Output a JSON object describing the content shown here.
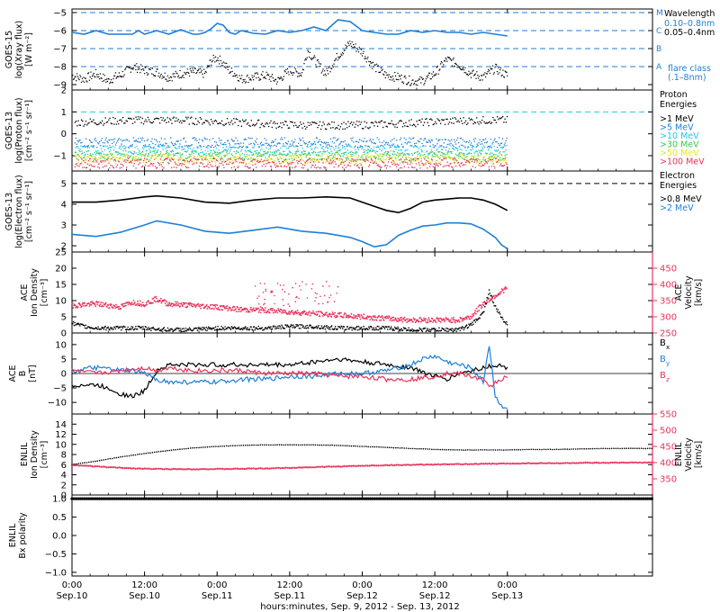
{
  "colors": {
    "black": "#000000",
    "blue": "#1e7fd8",
    "cyan": "#1ec8e6",
    "green": "#39c94e",
    "yellow": "#e3e61e",
    "orange": "#f08c28",
    "red": "#e8335b",
    "pink": "#e8335b"
  },
  "x_axis": {
    "label": "hours:minutes, Sep.  9, 2012 - Sep. 13, 2012",
    "range_hours": [
      0,
      96
    ],
    "ticks": [
      {
        "h": 0,
        "time": "0:00",
        "date": "Sep.10"
      },
      {
        "h": 12,
        "time": "12:00",
        "date": "Sep.10"
      },
      {
        "h": 24,
        "time": "0:00",
        "date": "Sep.11"
      },
      {
        "h": 36,
        "time": "12:00",
        "date": "Sep.11"
      },
      {
        "h": 48,
        "time": "0:00",
        "date": "Sep.12"
      },
      {
        "h": 60,
        "time": "12:00",
        "date": "Sep.12"
      },
      {
        "h": 72,
        "time": "0:00",
        "date": "Sep.13"
      }
    ]
  },
  "chart_data": [
    {
      "type": "line",
      "panel": "goes15-xray",
      "ylabel_lines": [
        "GOES-15",
        "log(Xray flux)",
        "[W m⁻²]"
      ],
      "ylim": [
        -9.3,
        -4.8
      ],
      "yticks": [
        -5,
        -6,
        -7,
        -8,
        -9
      ],
      "threshold_lines": [
        {
          "y": -5,
          "label": "M"
        },
        {
          "y": -6,
          "label": "C"
        },
        {
          "y": -7,
          "label": "B"
        },
        {
          "y": -8,
          "label": "A"
        }
      ],
      "legend_title": "Wavelength",
      "series": [
        {
          "name": "0.10-0.8nm",
          "color_key": "blue",
          "x": [
            0,
            2,
            4,
            5,
            6,
            7,
            8,
            9,
            10,
            11,
            12,
            14,
            15,
            16,
            18,
            20,
            21,
            22,
            23,
            24,
            25,
            26,
            27,
            28,
            30,
            32,
            34,
            36,
            38,
            40,
            42,
            44,
            46,
            48,
            50,
            52,
            54,
            56,
            58,
            60,
            62,
            64,
            66,
            68,
            70,
            72
          ],
          "y": [
            -6.1,
            -6.2,
            -6.0,
            -6.1,
            -6.2,
            -6.2,
            -6.2,
            -6.2,
            -6.2,
            -6.0,
            -6.2,
            -6.0,
            -6.1,
            -6.2,
            -5.95,
            -6.2,
            -6.2,
            -6.1,
            -5.9,
            -5.6,
            -5.7,
            -6.1,
            -6.2,
            -6.0,
            -6.15,
            -6.2,
            -6.0,
            -6.1,
            -6.0,
            -5.8,
            -6.0,
            -5.4,
            -5.5,
            -6.0,
            -6.1,
            -6.2,
            -6.2,
            -6.0,
            -6.1,
            -6.0,
            -6.1,
            -6.1,
            -6.2,
            -6.1,
            -6.2,
            -6.3
          ]
        },
        {
          "name": "0.05-0.4nm",
          "color_key": "black",
          "x": [
            0,
            2,
            4,
            5,
            6,
            7,
            8,
            10,
            12,
            14,
            16,
            18,
            20,
            22,
            23,
            24,
            25,
            26,
            27,
            28,
            30,
            32,
            34,
            36,
            38,
            39,
            40,
            42,
            44,
            46,
            48,
            50,
            52,
            54,
            56,
            58,
            60,
            62,
            64,
            66,
            68,
            70,
            72
          ],
          "y": [
            -8.5,
            -8.7,
            -8.4,
            -8.6,
            -8.8,
            -8.6,
            -8.5,
            -8.0,
            -8.2,
            -8.3,
            -8.6,
            -8.4,
            -8.3,
            -8.4,
            -7.7,
            -7.5,
            -7.8,
            -8.2,
            -8.4,
            -8.7,
            -8.6,
            -8.5,
            -8.8,
            -8.2,
            -8.4,
            -7.1,
            -7.6,
            -8.4,
            -7.4,
            -6.7,
            -7.2,
            -8.0,
            -8.5,
            -8.6,
            -8.8,
            -8.8,
            -8.4,
            -7.6,
            -7.9,
            -8.4,
            -8.6,
            -8.1,
            -8.5
          ]
        }
      ],
      "footnote": {
        "title": "flare class",
        "subtitle": "(.1–8nm)"
      }
    },
    {
      "type": "scatter",
      "panel": "goes13-proton",
      "ylabel_lines": [
        "GOES-13",
        "log(Proton flux)",
        "[cm⁻² s⁻¹ sr⁻¹]"
      ],
      "ylim": [
        -1.7,
        2.0
      ],
      "yticks": [
        2,
        1,
        0,
        -1
      ],
      "threshold_line": 1,
      "legend_title": "Proton Energies",
      "series": [
        {
          "name": ">1 MeV",
          "color_key": "black",
          "mean_y": 0.5
        },
        {
          "name": ">5 MeV",
          "color_key": "blue",
          "mean_y": -0.4
        },
        {
          "name": ">10 MeV",
          "color_key": "cyan",
          "mean_y": -0.75
        },
        {
          "name": ">30 MeV",
          "color_key": "green",
          "mean_y": -1.0
        },
        {
          "name": ">50 MeV",
          "color_key": "yellow",
          "mean_y": -1.15
        },
        {
          "name": ">100 MeV",
          "color_key": "red",
          "mean_y": -1.35
        }
      ]
    },
    {
      "type": "line",
      "panel": "goes13-electron",
      "ylabel_lines": [
        "GOES-13",
        "log(Electron flux)",
        "[cm⁻² s⁻¹ sr⁻¹]"
      ],
      "ylim": [
        1.7,
        5.6
      ],
      "yticks": [
        5,
        4,
        3,
        2
      ],
      "threshold_line": 5,
      "legend_title": "Electron Energies",
      "series": [
        {
          "name": ">0.8 MeV",
          "color_key": "black",
          "x": [
            0,
            4,
            8,
            12,
            14,
            18,
            22,
            26,
            30,
            34,
            38,
            42,
            46,
            48,
            50,
            52,
            54,
            56,
            58,
            60,
            62,
            64,
            66,
            68,
            70,
            72
          ],
          "y": [
            4.1,
            4.1,
            4.2,
            4.35,
            4.4,
            4.3,
            4.1,
            4.05,
            4.2,
            4.3,
            4.3,
            4.35,
            4.3,
            4.1,
            3.9,
            3.7,
            3.6,
            3.8,
            4.1,
            4.2,
            4.25,
            4.3,
            4.3,
            4.2,
            4.0,
            3.7
          ]
        },
        {
          "name": ">2 MeV",
          "color_key": "blue",
          "x": [
            0,
            4,
            8,
            12,
            14,
            18,
            22,
            26,
            30,
            34,
            38,
            42,
            46,
            48,
            50,
            52,
            54,
            56,
            58,
            60,
            62,
            64,
            66,
            68,
            70,
            71,
            72
          ],
          "y": [
            2.55,
            2.45,
            2.65,
            3.0,
            3.2,
            3.0,
            2.7,
            2.6,
            2.75,
            2.9,
            2.7,
            2.6,
            2.4,
            2.2,
            1.95,
            2.05,
            2.5,
            2.75,
            2.95,
            3.0,
            3.1,
            3.1,
            3.05,
            2.8,
            2.4,
            2.05,
            1.85
          ]
        }
      ]
    },
    {
      "type": "scatter",
      "panel": "ace-plasma",
      "ylabel_lines": [
        "ACE",
        "Ion Density",
        "[cm⁻³]"
      ],
      "ylim": [
        0,
        25
      ],
      "yticks": [
        25,
        20,
        15,
        10,
        5,
        0
      ],
      "ylabel_right_lines": [
        "ACE",
        "Velocity",
        "[km/s]"
      ],
      "ylim_right": [
        250,
        500
      ],
      "yticks_right": [
        450,
        400,
        350,
        300,
        250
      ],
      "series": [
        {
          "name": "Ion Density",
          "color_key": "black",
          "x": [
            0,
            2,
            4,
            8,
            12,
            16,
            20,
            24,
            28,
            32,
            36,
            40,
            44,
            48,
            52,
            56,
            60,
            64,
            66,
            68,
            69,
            70,
            71,
            72
          ],
          "y": [
            3,
            2,
            1.5,
            1.5,
            1.5,
            1,
            1,
            1.5,
            1.5,
            1.5,
            2,
            2,
            1.5,
            1.5,
            1.5,
            1,
            1,
            1,
            2.5,
            6,
            13,
            8,
            5,
            2.5
          ]
        },
        {
          "name": "Velocity",
          "color_key": "pink",
          "x": [
            0,
            4,
            8,
            10,
            12,
            14,
            16,
            20,
            24,
            28,
            32,
            36,
            40,
            44,
            48,
            52,
            56,
            60,
            64,
            66,
            68,
            70,
            72
          ],
          "y": [
            335,
            340,
            330,
            345,
            340,
            355,
            340,
            335,
            330,
            322,
            320,
            315,
            310,
            305,
            300,
            295,
            290,
            290,
            290,
            300,
            340,
            365,
            390
          ]
        }
      ]
    },
    {
      "type": "line",
      "panel": "ace-field",
      "ylabel_lines": [
        "ACE",
        "B",
        "[nT]"
      ],
      "ylim": [
        -14,
        14
      ],
      "yticks": [
        10,
        5,
        0,
        -5,
        -10
      ],
      "series": [
        {
          "name": "Bx",
          "color_key": "black",
          "x": [
            0,
            4,
            6,
            8,
            10,
            12,
            14,
            16,
            20,
            24,
            28,
            32,
            36,
            40,
            44,
            48,
            52,
            56,
            60,
            62,
            64,
            66,
            68,
            70,
            72
          ],
          "y": [
            -4,
            -4,
            -5,
            -7,
            -8,
            -6,
            1,
            3,
            3,
            3,
            3,
            3,
            3,
            4,
            5,
            4,
            3,
            2,
            -1,
            -2,
            0,
            1,
            2,
            3,
            2
          ]
        },
        {
          "name": "By",
          "color_key": "blue",
          "x": [
            0,
            4,
            8,
            10,
            12,
            14,
            16,
            20,
            24,
            28,
            32,
            36,
            40,
            44,
            48,
            52,
            56,
            58,
            60,
            62,
            64,
            66,
            68,
            69,
            70,
            71,
            72
          ],
          "y": [
            1,
            2,
            1,
            1,
            0,
            -2,
            -3,
            -3,
            -3,
            -2,
            -2,
            -1,
            -1,
            0,
            0,
            1,
            3,
            5,
            6,
            4,
            3,
            2,
            -3,
            10,
            -8,
            -11,
            -12
          ]
        },
        {
          "name": "Bz",
          "color_key": "pink",
          "x": [
            0,
            4,
            8,
            12,
            14,
            16,
            20,
            24,
            28,
            32,
            36,
            40,
            44,
            48,
            52,
            56,
            60,
            62,
            64,
            66,
            68,
            69,
            70,
            71,
            72
          ],
          "y": [
            1,
            0,
            1,
            2,
            1,
            2,
            1,
            1,
            1,
            0,
            0,
            0,
            -1,
            -1,
            -2,
            -2,
            -1,
            0,
            0,
            -1,
            -2,
            -5,
            -3,
            -2,
            -1
          ]
        }
      ]
    },
    {
      "type": "line",
      "panel": "enlil-plasma",
      "ylabel_lines": [
        "ENLIL",
        "Ion Density",
        "[cm⁻³]"
      ],
      "ylim": [
        0,
        16
      ],
      "yticks": [
        14,
        12,
        10,
        8,
        6,
        4,
        2,
        0
      ],
      "ylabel_right_lines": [
        "ENLIL",
        "Velocity",
        "[km/s]"
      ],
      "ylim_right": [
        300,
        550
      ],
      "yticks_right": [
        550,
        500,
        450,
        400,
        350
      ],
      "series": [
        {
          "name": "Ion Density",
          "color_key": "black",
          "x": [
            0,
            4,
            8,
            12,
            16,
            20,
            24,
            28,
            32,
            36,
            40,
            44,
            48,
            52,
            56,
            60,
            64,
            68,
            72,
            76,
            80,
            84,
            88,
            92,
            96
          ],
          "y": [
            6,
            6.7,
            7.5,
            8.2,
            8.8,
            9.3,
            9.6,
            9.8,
            9.9,
            9.9,
            9.9,
            9.8,
            9.6,
            9.4,
            9.2,
            9.0,
            8.9,
            8.9,
            8.9,
            9.0,
            9.0,
            9.1,
            9.2,
            9.2,
            9.2
          ]
        },
        {
          "name": "Velocity",
          "color_key": "pink",
          "x": [
            0,
            4,
            8,
            12,
            16,
            20,
            24,
            28,
            32,
            36,
            40,
            44,
            48,
            52,
            56,
            60,
            64,
            68,
            72,
            76,
            80,
            84,
            88,
            92,
            96
          ],
          "y": [
            392,
            388,
            384,
            381,
            380,
            380,
            380,
            381,
            382,
            384,
            386,
            388,
            390,
            392,
            393,
            394,
            395,
            396,
            397,
            398,
            398,
            399,
            399,
            400,
            400
          ]
        }
      ]
    },
    {
      "type": "line",
      "panel": "enlil-polarity",
      "ylabel_lines": [
        "ENLIL",
        "Bx polarity"
      ],
      "ylim": [
        -1.1,
        1.1
      ],
      "yticks": [
        1.0,
        0.5,
        0.0,
        -0.5,
        -1.0
      ],
      "series": [
        {
          "name": "Bx polarity",
          "color_key": "black",
          "x": [
            0,
            96
          ],
          "y": [
            1,
            1
          ]
        }
      ]
    }
  ],
  "legends": {
    "xray": {
      "title": "Wavelength",
      "items": [
        {
          "text": "0.10–0.8nm",
          "color_key": "blue"
        },
        {
          "text": "0.05–0.4nm",
          "color_key": "black"
        }
      ],
      "footnote_title": "flare class",
      "footnote_sub": "(.1–8nm)"
    },
    "proton": {
      "title1": "Proton",
      "title2": "Energies",
      "items": [
        {
          "text": ">1 MeV",
          "color_key": "black"
        },
        {
          "text": ">5 MeV",
          "color_key": "blue"
        },
        {
          "text": ">10 MeV",
          "color_key": "cyan"
        },
        {
          "text": ">30 MeV",
          "color_key": "green"
        },
        {
          "text": ">50 MeV",
          "color_key": "yellow"
        },
        {
          "text": ">100 MeV",
          "color_key": "red"
        }
      ]
    },
    "electron": {
      "title1": "Electron",
      "title2": "Energies",
      "items": [
        {
          "text": ">0.8 MeV",
          "color_key": "black"
        },
        {
          "text": ">2 MeV",
          "color_key": "blue"
        }
      ]
    },
    "ace_b": {
      "items": [
        {
          "text": "B",
          "sub": "x",
          "color_key": "black"
        },
        {
          "text": "B",
          "sub": "y",
          "color_key": "blue"
        },
        {
          "text": "B",
          "sub": "z",
          "color_key": "pink"
        }
      ]
    }
  }
}
